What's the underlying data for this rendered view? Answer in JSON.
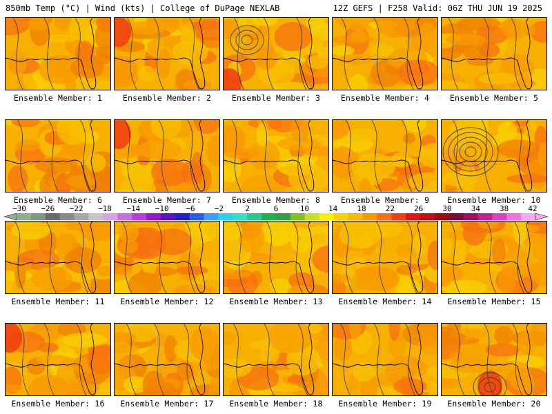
{
  "header": {
    "left": "850mb Temp (°C) | Wind (kts) | College of DuPage NEXLAB",
    "right": "12Z GEFS | F258 Valid: 06Z THU JUN 19 2025"
  },
  "colorbar": {
    "labels": [
      "−30",
      "−26",
      "−22",
      "−18",
      "−14",
      "−10",
      "−6",
      "−2",
      "2",
      "6",
      "10",
      "14",
      "18",
      "22",
      "26",
      "30",
      "34",
      "38",
      "42"
    ],
    "colors": [
      "#8fb08c",
      "#7d9a7d",
      "#6b6b6b",
      "#8a8a8a",
      "#a8a8a8",
      "#c6c6c6",
      "#d7a3e6",
      "#c86fe0",
      "#c038d8",
      "#9a18c8",
      "#5a12c8",
      "#2020d0",
      "#2a5cf0",
      "#3aa0f8",
      "#2ad0f0",
      "#30e0c8",
      "#2ac890",
      "#20b050",
      "#30a040",
      "#80c020",
      "#c8e020",
      "#f8f000",
      "#f8d000",
      "#f8b800",
      "#f89800",
      "#f87010",
      "#f04010",
      "#e01818",
      "#c01010",
      "#a00c0c",
      "#800a3a",
      "#a01060",
      "#c02090",
      "#e040c0",
      "#f070e0",
      "#f8a8f0"
    ]
  },
  "members": [
    {
      "label": "Ensemble Member: 1"
    },
    {
      "label": "Ensemble Member: 2"
    },
    {
      "label": "Ensemble Member: 3"
    },
    {
      "label": "Ensemble Member: 4"
    },
    {
      "label": "Ensemble Member: 5"
    },
    {
      "label": "Ensemble Member: 6"
    },
    {
      "label": "Ensemble Member: 7"
    },
    {
      "label": "Ensemble Member: 8"
    },
    {
      "label": "Ensemble Member: 9"
    },
    {
      "label": "Ensemble Member: 10"
    },
    {
      "label": "Ensemble Member: 11"
    },
    {
      "label": "Ensemble Member: 12"
    },
    {
      "label": "Ensemble Member: 13"
    },
    {
      "label": "Ensemble Member: 14"
    },
    {
      "label": "Ensemble Member: 15"
    },
    {
      "label": "Ensemble Member: 16"
    },
    {
      "label": "Ensemble Member: 17"
    },
    {
      "label": "Ensemble Member: 18"
    },
    {
      "label": "Ensemble Member: 19"
    },
    {
      "label": "Ensemble Member: 20"
    }
  ]
}
